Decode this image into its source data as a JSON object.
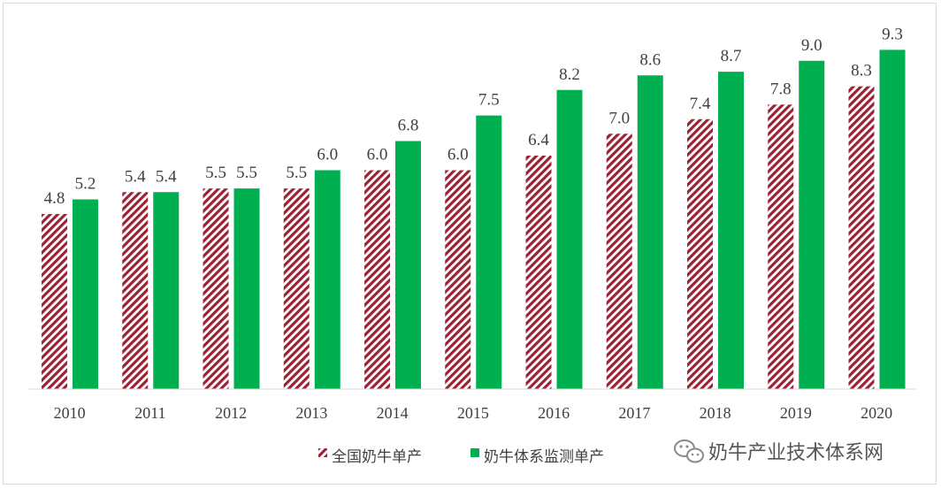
{
  "chart_data": {
    "type": "bar",
    "categories": [
      "2010",
      "2011",
      "2012",
      "2013",
      "2014",
      "2015",
      "2016",
      "2017",
      "2018",
      "2019",
      "2020"
    ],
    "series": [
      {
        "name": "全国奶牛单产",
        "values": [
          4.8,
          5.4,
          5.5,
          5.5,
          6.0,
          6.0,
          6.4,
          7.0,
          7.4,
          7.8,
          8.3
        ],
        "color": "#9b2335",
        "pattern": "diagonal-stripes"
      },
      {
        "name": "奶牛体系监测单产",
        "values": [
          5.2,
          5.4,
          5.5,
          6.0,
          6.8,
          7.5,
          8.2,
          8.6,
          8.7,
          9.0,
          9.3
        ],
        "color": "#00b050"
      }
    ],
    "value_labels": {
      "s0": [
        "4.8",
        "5.4",
        "5.5",
        "5.5",
        "6.0",
        "6.0",
        "6.4",
        "7.0",
        "7.4",
        "7.8",
        "8.3"
      ],
      "s1": [
        "5.2",
        "5.4",
        "5.5",
        "6.0",
        "6.8",
        "7.5",
        "8.2",
        "8.6",
        "8.7",
        "9.0",
        "9.3"
      ]
    },
    "ylim": [
      0,
      10
    ],
    "grid": false,
    "legend_position": "bottom",
    "title": "",
    "xlabel": "",
    "ylabel": ""
  },
  "watermark": {
    "icon": "wechat-icon",
    "text": "奶牛产业技术体系网"
  }
}
